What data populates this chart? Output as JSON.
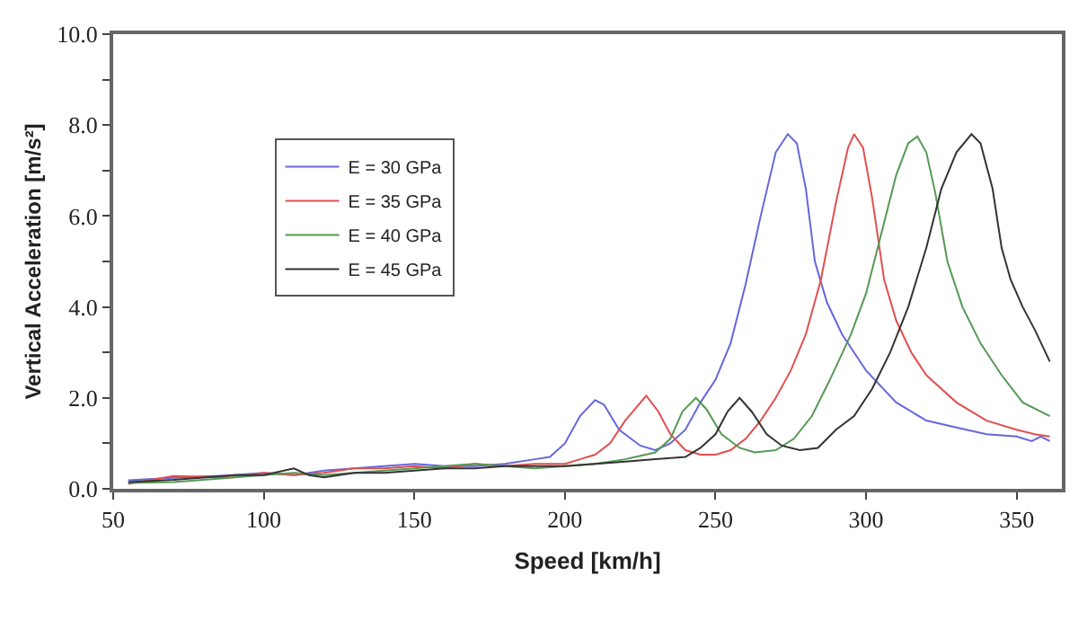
{
  "chart_data": {
    "type": "line",
    "xlabel": "Speed [km/h]",
    "ylabel": "Vertical Acceleration [m/s²]",
    "xlim": [
      50,
      365
    ],
    "xticks": [
      50,
      100,
      150,
      200,
      250,
      300,
      350
    ],
    "ylim": [
      0,
      10
    ],
    "yticks": [
      {
        "value": 0,
        "label": "0.0"
      },
      {
        "value": 1,
        "label": null
      },
      {
        "value": 2,
        "label": "2.0"
      },
      {
        "value": 3,
        "label": null
      },
      {
        "value": 4,
        "label": "4.0"
      },
      {
        "value": 5,
        "label": null
      },
      {
        "value": 6,
        "label": "6.0"
      },
      {
        "value": 7,
        "label": null
      },
      {
        "value": 8,
        "label": "8.0"
      },
      {
        "value": 9,
        "label": null
      },
      {
        "value": 10,
        "label": "10.0"
      }
    ],
    "grid": false,
    "legend": "top left",
    "marker": "none",
    "line_style": "solid",
    "series": [
      {
        "name": "E = 30 GPa",
        "color": "#6666dd",
        "x": [
          55,
          70,
          90,
          100,
          110,
          120,
          130,
          140,
          150,
          160,
          170,
          180,
          190,
          195,
          200,
          205,
          210,
          213,
          218,
          225,
          230,
          235,
          240,
          245,
          250,
          255,
          260,
          265,
          270,
          274,
          277,
          280,
          283,
          287,
          292,
          300,
          310,
          320,
          330,
          340,
          350,
          355,
          358,
          361
        ],
        "values": [
          0.19,
          0.24,
          0.3,
          0.35,
          0.3,
          0.4,
          0.45,
          0.5,
          0.55,
          0.5,
          0.5,
          0.55,
          0.65,
          0.7,
          1.0,
          1.6,
          1.95,
          1.85,
          1.3,
          0.95,
          0.85,
          1.0,
          1.3,
          1.9,
          2.4,
          3.2,
          4.5,
          6.0,
          7.4,
          7.8,
          7.6,
          6.6,
          5.0,
          4.1,
          3.4,
          2.6,
          1.9,
          1.5,
          1.35,
          1.2,
          1.15,
          1.05,
          1.15,
          1.05
        ]
      },
      {
        "name": "E = 35 GPa",
        "color": "#e05050",
        "x": [
          55,
          70,
          90,
          100,
          110,
          120,
          130,
          140,
          150,
          160,
          170,
          180,
          190,
          200,
          205,
          210,
          215,
          220,
          227,
          231,
          235,
          240,
          245,
          250,
          255,
          260,
          265,
          270,
          275,
          280,
          285,
          290,
          294,
          296,
          299,
          302,
          306,
          310,
          315,
          320,
          330,
          340,
          350,
          356,
          361
        ],
        "values": [
          0.11,
          0.28,
          0.25,
          0.35,
          0.3,
          0.35,
          0.45,
          0.45,
          0.5,
          0.45,
          0.55,
          0.5,
          0.55,
          0.55,
          0.65,
          0.75,
          1.0,
          1.5,
          2.05,
          1.7,
          1.2,
          0.85,
          0.75,
          0.75,
          0.85,
          1.1,
          1.5,
          2.0,
          2.6,
          3.4,
          4.6,
          6.3,
          7.5,
          7.8,
          7.5,
          6.4,
          4.6,
          3.7,
          3.0,
          2.5,
          1.9,
          1.5,
          1.3,
          1.2,
          1.15
        ]
      },
      {
        "name": "E = 40 GPa",
        "color": "#559955",
        "x": [
          55,
          70,
          90,
          100,
          110,
          120,
          130,
          140,
          150,
          160,
          170,
          180,
          190,
          200,
          210,
          220,
          230,
          235,
          239,
          243.5,
          247,
          252,
          258,
          263,
          270,
          276,
          282,
          288,
          295,
          300,
          305,
          310,
          314,
          317,
          320,
          323,
          327,
          332,
          338,
          345,
          352,
          361
        ],
        "values": [
          0.13,
          0.15,
          0.25,
          0.3,
          0.35,
          0.3,
          0.35,
          0.4,
          0.45,
          0.5,
          0.55,
          0.5,
          0.45,
          0.5,
          0.55,
          0.65,
          0.8,
          1.1,
          1.7,
          2.0,
          1.75,
          1.2,
          0.9,
          0.8,
          0.85,
          1.1,
          1.6,
          2.4,
          3.4,
          4.3,
          5.6,
          6.9,
          7.6,
          7.75,
          7.4,
          6.5,
          5.0,
          4.0,
          3.2,
          2.5,
          1.9,
          1.6
        ]
      },
      {
        "name": "E = 45 GPa",
        "color": "#333333",
        "x": [
          55,
          70,
          90,
          100,
          110,
          115,
          120,
          130,
          140,
          150,
          160,
          170,
          180,
          190,
          200,
          210,
          220,
          230,
          240,
          245,
          250,
          254,
          258,
          262,
          267,
          272,
          278,
          284,
          290,
          296,
          302,
          308,
          314,
          320,
          325,
          330,
          335,
          338,
          342,
          345,
          348,
          352,
          356,
          361
        ],
        "values": [
          0.15,
          0.2,
          0.3,
          0.3,
          0.45,
          0.3,
          0.25,
          0.35,
          0.35,
          0.4,
          0.45,
          0.45,
          0.5,
          0.5,
          0.5,
          0.55,
          0.6,
          0.65,
          0.7,
          0.9,
          1.2,
          1.7,
          2.0,
          1.7,
          1.2,
          0.95,
          0.85,
          0.9,
          1.3,
          1.6,
          2.2,
          3.0,
          4.0,
          5.3,
          6.6,
          7.4,
          7.8,
          7.6,
          6.6,
          5.3,
          4.6,
          4.0,
          3.5,
          2.8
        ]
      }
    ]
  }
}
